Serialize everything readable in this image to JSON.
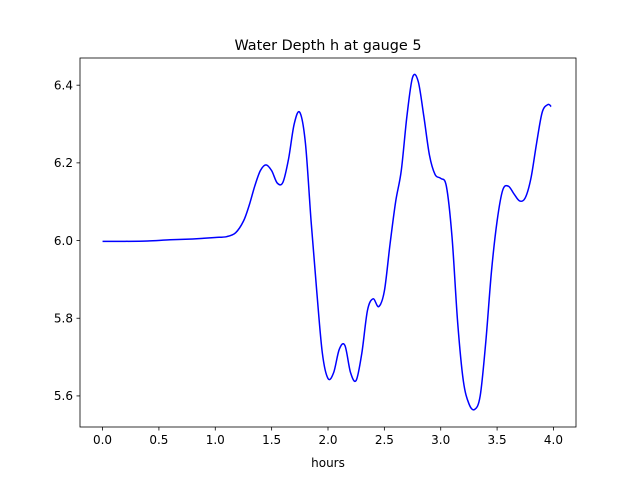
{
  "chart_data": {
    "type": "line",
    "title": "Water Depth h at gauge 5",
    "xlabel": "hours",
    "ylabel": "",
    "xlim": [
      -0.2,
      4.2
    ],
    "ylim": [
      5.52,
      6.47
    ],
    "xticks": [
      0.0,
      0.5,
      1.0,
      1.5,
      2.0,
      2.5,
      3.0,
      3.5,
      4.0
    ],
    "xtick_labels": [
      "0.0",
      "0.5",
      "1.0",
      "1.5",
      "2.0",
      "2.5",
      "3.0",
      "3.5",
      "4.0"
    ],
    "yticks": [
      5.6,
      5.8,
      6.0,
      6.2,
      6.4
    ],
    "ytick_labels": [
      "5.6",
      "5.8",
      "6.0",
      "6.2",
      "6.4"
    ],
    "grid": false,
    "series": [
      {
        "color": "#0000ff",
        "x": [
          0.0,
          0.2,
          0.4,
          0.6,
          0.8,
          0.9,
          1.0,
          1.1,
          1.18,
          1.25,
          1.3,
          1.35,
          1.4,
          1.45,
          1.5,
          1.55,
          1.6,
          1.65,
          1.7,
          1.75,
          1.8,
          1.85,
          1.9,
          1.95,
          2.0,
          2.05,
          2.1,
          2.15,
          2.2,
          2.25,
          2.3,
          2.35,
          2.4,
          2.45,
          2.5,
          2.55,
          2.6,
          2.65,
          2.7,
          2.75,
          2.8,
          2.85,
          2.9,
          2.95,
          3.0,
          3.05,
          3.1,
          3.15,
          3.2,
          3.25,
          3.3,
          3.35,
          3.4,
          3.45,
          3.5,
          3.55,
          3.6,
          3.65,
          3.7,
          3.75,
          3.8,
          3.85,
          3.9,
          3.95,
          3.98
        ],
        "values": [
          5.998,
          5.998,
          5.999,
          6.002,
          6.004,
          6.006,
          6.008,
          6.01,
          6.02,
          6.05,
          6.09,
          6.14,
          6.18,
          6.195,
          6.18,
          6.148,
          6.15,
          6.21,
          6.3,
          6.33,
          6.25,
          6.05,
          5.87,
          5.71,
          5.645,
          5.66,
          5.72,
          5.73,
          5.66,
          5.64,
          5.71,
          5.82,
          5.85,
          5.83,
          5.87,
          5.99,
          6.1,
          6.18,
          6.32,
          6.42,
          6.41,
          6.32,
          6.22,
          6.17,
          6.16,
          6.14,
          6.01,
          5.79,
          5.64,
          5.58,
          5.565,
          5.6,
          5.74,
          5.92,
          6.05,
          6.13,
          6.14,
          6.12,
          6.102,
          6.11,
          6.16,
          6.25,
          6.33,
          6.35,
          6.345
        ]
      }
    ]
  }
}
